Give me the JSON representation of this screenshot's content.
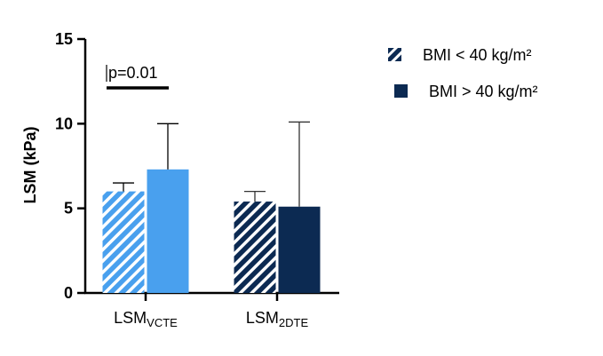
{
  "chart_data": {
    "type": "bar",
    "ylabel": "LSM (kPa)",
    "ylim": [
      0,
      15
    ],
    "yticks": [
      0,
      5,
      10,
      15
    ],
    "categories": [
      {
        "main": "LSM",
        "sub": "VCTE"
      },
      {
        "main": "LSM",
        "sub": "2DTE"
      }
    ],
    "series": [
      {
        "name": "BMI < 40 kg/m²",
        "pattern": "hatched",
        "values": [
          6.0,
          5.4
        ],
        "error_upper": [
          6.5,
          6.0
        ],
        "colors": [
          "#49a0ee",
          "#0c2a52"
        ]
      },
      {
        "name": "BMI > 40 kg/m²",
        "pattern": "solid",
        "values": [
          7.3,
          5.1
        ],
        "error_upper": [
          10.0,
          10.1
        ],
        "colors": [
          "#49a0ee",
          "#0c2a52"
        ]
      }
    ],
    "annotations": [
      {
        "text": "p=0.01",
        "category_index": 0
      }
    ],
    "legend_position": "top-right",
    "legend_swatch_color": "#0c2a52",
    "grid": false
  }
}
